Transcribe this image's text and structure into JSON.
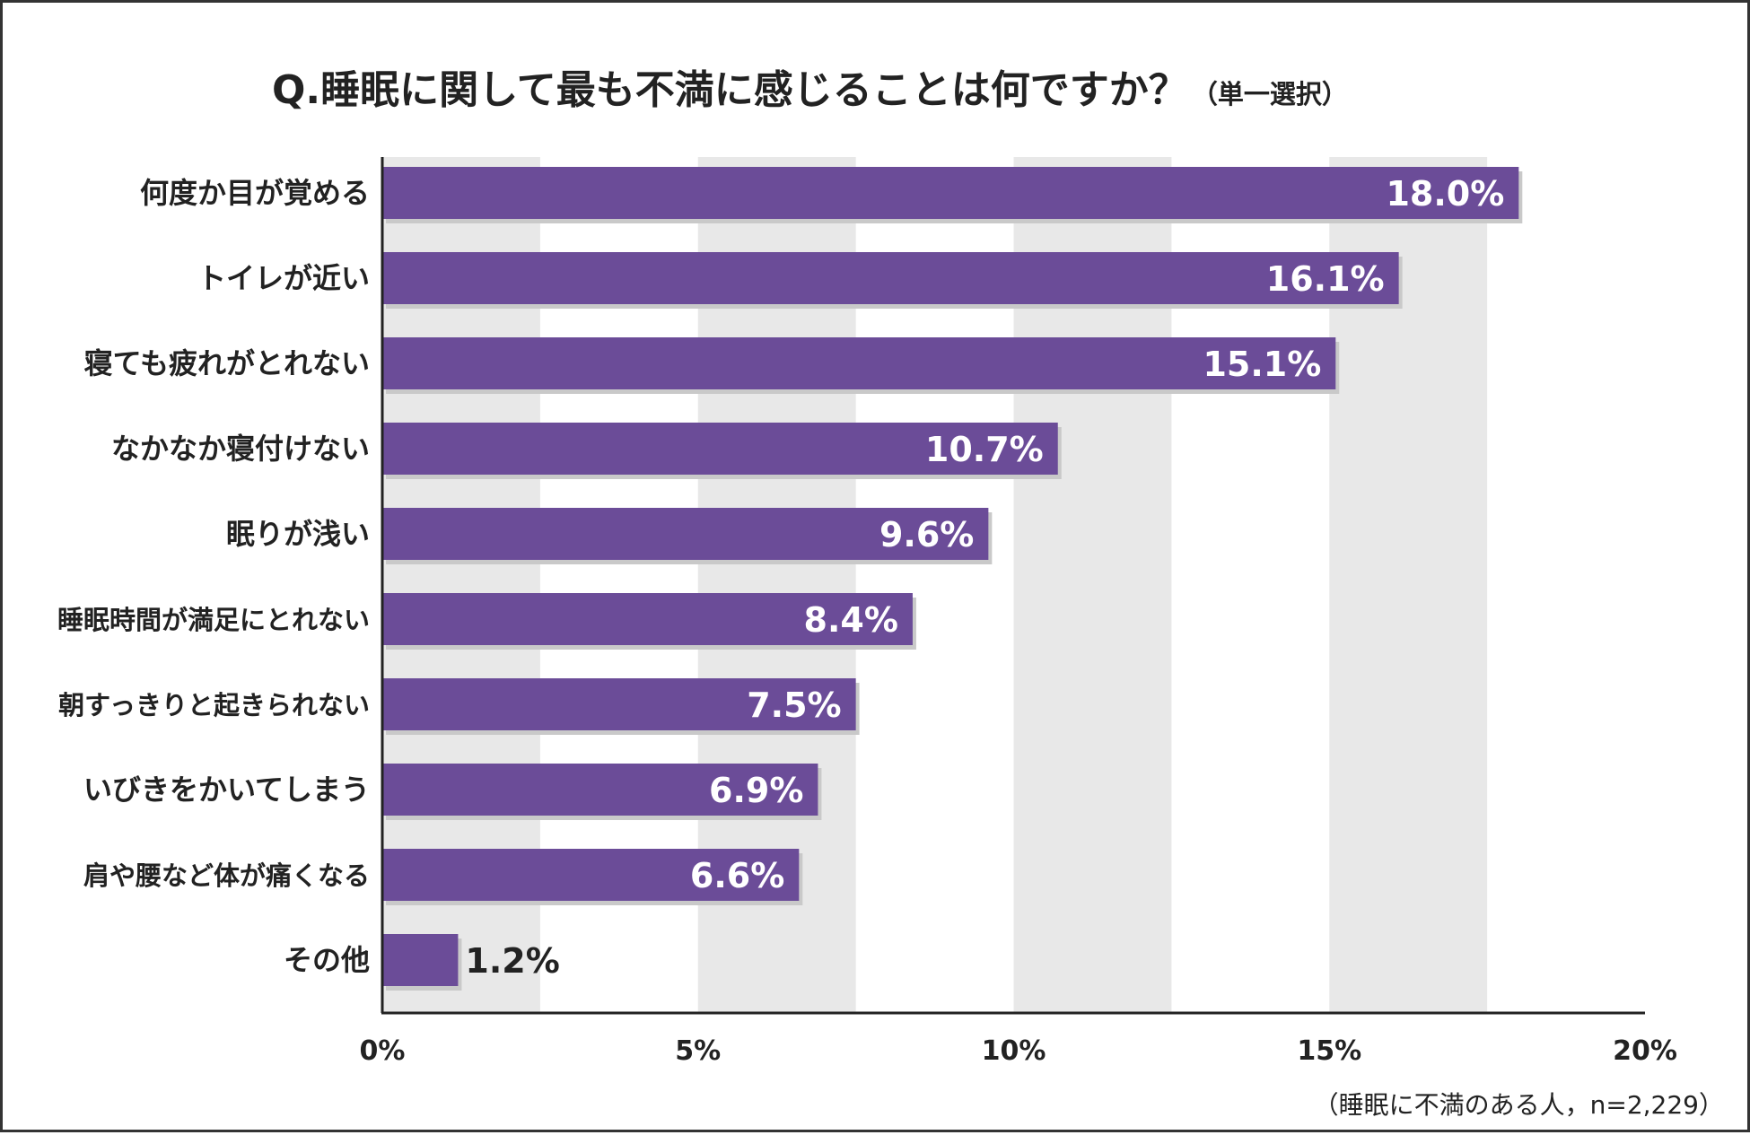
{
  "chart_data": {
    "type": "bar",
    "orientation": "horizontal",
    "title": "Q.睡眠に関して最も不満に感じることは何ですか？",
    "subtitle": "（単一選択）",
    "categories": [
      "何度か目が覚める",
      "トイレが近い",
      "寝ても疲れがとれない",
      "なかなか寝付けない",
      "眠りが浅い",
      "睡眠時間が満足にとれない",
      "朝すっきりと起きられない",
      "いびきをかいてしまう",
      "肩や腰など体が痛くなる",
      "その他"
    ],
    "values": [
      18.0,
      16.1,
      15.1,
      10.7,
      9.6,
      8.4,
      7.5,
      6.9,
      6.6,
      1.2
    ],
    "value_labels": [
      "18.0%",
      "16.1%",
      "15.1%",
      "10.7%",
      "9.6%",
      "8.4%",
      "7.5%",
      "6.9%",
      "6.6%",
      "1.2%"
    ],
    "xlim": [
      0,
      20
    ],
    "xticks": [
      0,
      5,
      10,
      15,
      20
    ],
    "xtick_labels": [
      "0%",
      "5%",
      "10%",
      "15%",
      "20%"
    ],
    "xlabel": "",
    "ylabel": "",
    "grid": "alternating vertical bands",
    "note": "（睡眠に不満のある人，n=2,229）"
  },
  "colors": {
    "bar": "#6b4c98",
    "bar_shadow": "#c9c9c9",
    "band": "#e8e8e8",
    "axis": "#222222",
    "text": "#222222",
    "value_inside": "#ffffff",
    "value_outside": "#222222"
  }
}
